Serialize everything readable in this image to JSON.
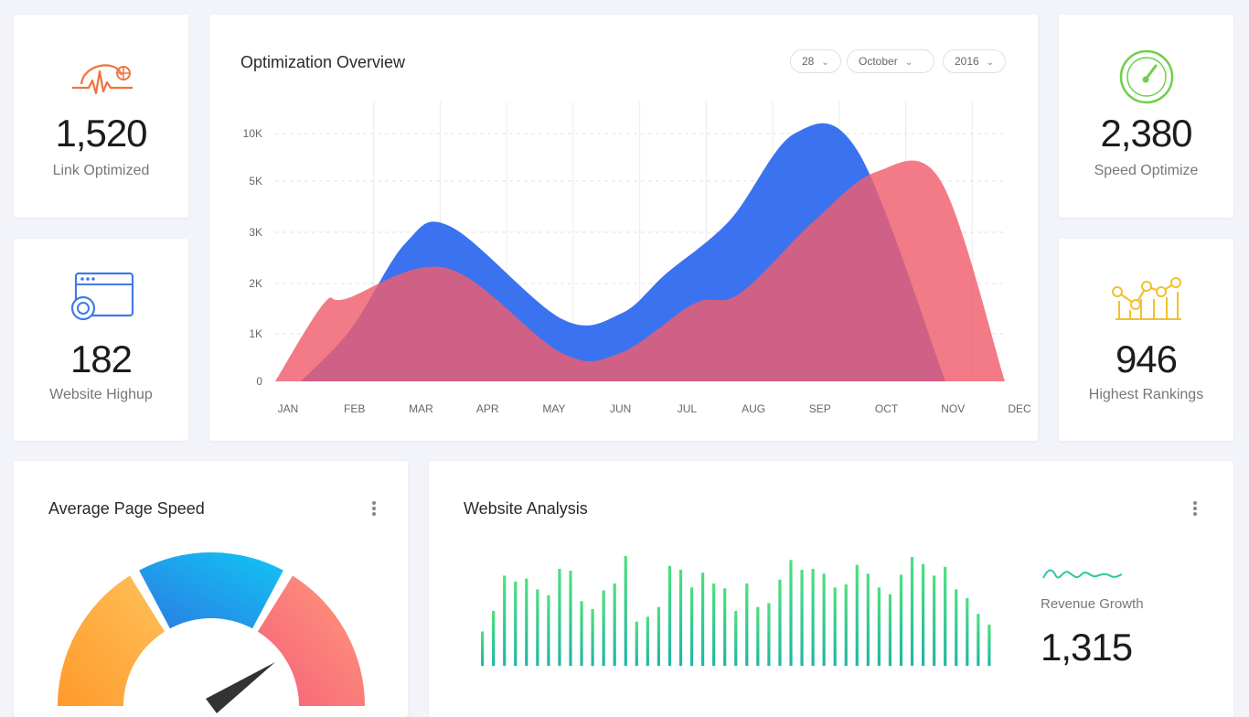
{
  "stats": {
    "link": {
      "value": "1,520",
      "label": "Link Optimized",
      "icon": "link-pulse-icon",
      "color": "#f0733f"
    },
    "website": {
      "value": "182",
      "label": "Website Highup",
      "icon": "browser-gear-icon",
      "color": "#3f7be6"
    },
    "speed": {
      "value": "2,380",
      "label": "Speed Optimize",
      "icon": "speedometer-icon",
      "color": "#6fcf4a"
    },
    "rankings": {
      "value": "946",
      "label": "Highest Rankings",
      "icon": "ranking-chart-icon",
      "color": "#f2c12e"
    }
  },
  "overview": {
    "title": "Optimization Overview",
    "filters": {
      "day": "28",
      "month": "October",
      "year": "2016"
    }
  },
  "page_speed": {
    "title": "Average Page Speed"
  },
  "analysis": {
    "title": "Website Analysis",
    "revenue_label": "Revenue Growth",
    "revenue_value": "1,315"
  },
  "chart_data": [
    {
      "type": "area",
      "categories": [
        "JAN",
        "FEB",
        "MAR",
        "APR",
        "MAY",
        "JUN",
        "JUL",
        "AUG",
        "SEP",
        "OCT",
        "NOV",
        "DEC"
      ],
      "y_ticks": [
        "0",
        "1K",
        "2K",
        "3K",
        "5K",
        "10K"
      ],
      "series": [
        {
          "values": [
            0,
            1.1,
            2.8,
            3.2,
            1.3,
            1.4,
            2.2,
            3.5,
            10,
            8,
            0,
            0
          ],
          "color": "#3b72f0"
        },
        {
          "values": [
            0,
            1.6,
            1.7,
            2.3,
            0.6,
            0.6,
            1.6,
            1.8,
            3.4,
            6,
            5,
            0
          ],
          "color": "#ef5e6c"
        }
      ],
      "grid": true
    },
    {
      "type": "gauge",
      "segments": [
        {
          "color_start": "#ff9a2a",
          "color_end": "#fdc15b"
        },
        {
          "color_start": "#2c7be3",
          "color_end": "#11c6f4"
        },
        {
          "color_start": "#f5607a",
          "color_end": "#ff9a7a"
        }
      ]
    },
    {
      "type": "bar",
      "values": [
        35,
        56,
        92,
        86,
        89,
        78,
        72,
        99,
        97,
        66,
        58,
        77,
        84,
        112,
        45,
        50,
        60,
        102,
        98,
        80,
        95,
        84,
        79,
        56,
        84,
        60,
        64,
        88,
        108,
        98,
        99,
        94,
        80,
        83,
        103,
        94,
        80,
        73,
        93,
        111,
        104,
        92,
        101,
        78,
        69,
        53,
        42
      ]
    }
  ]
}
